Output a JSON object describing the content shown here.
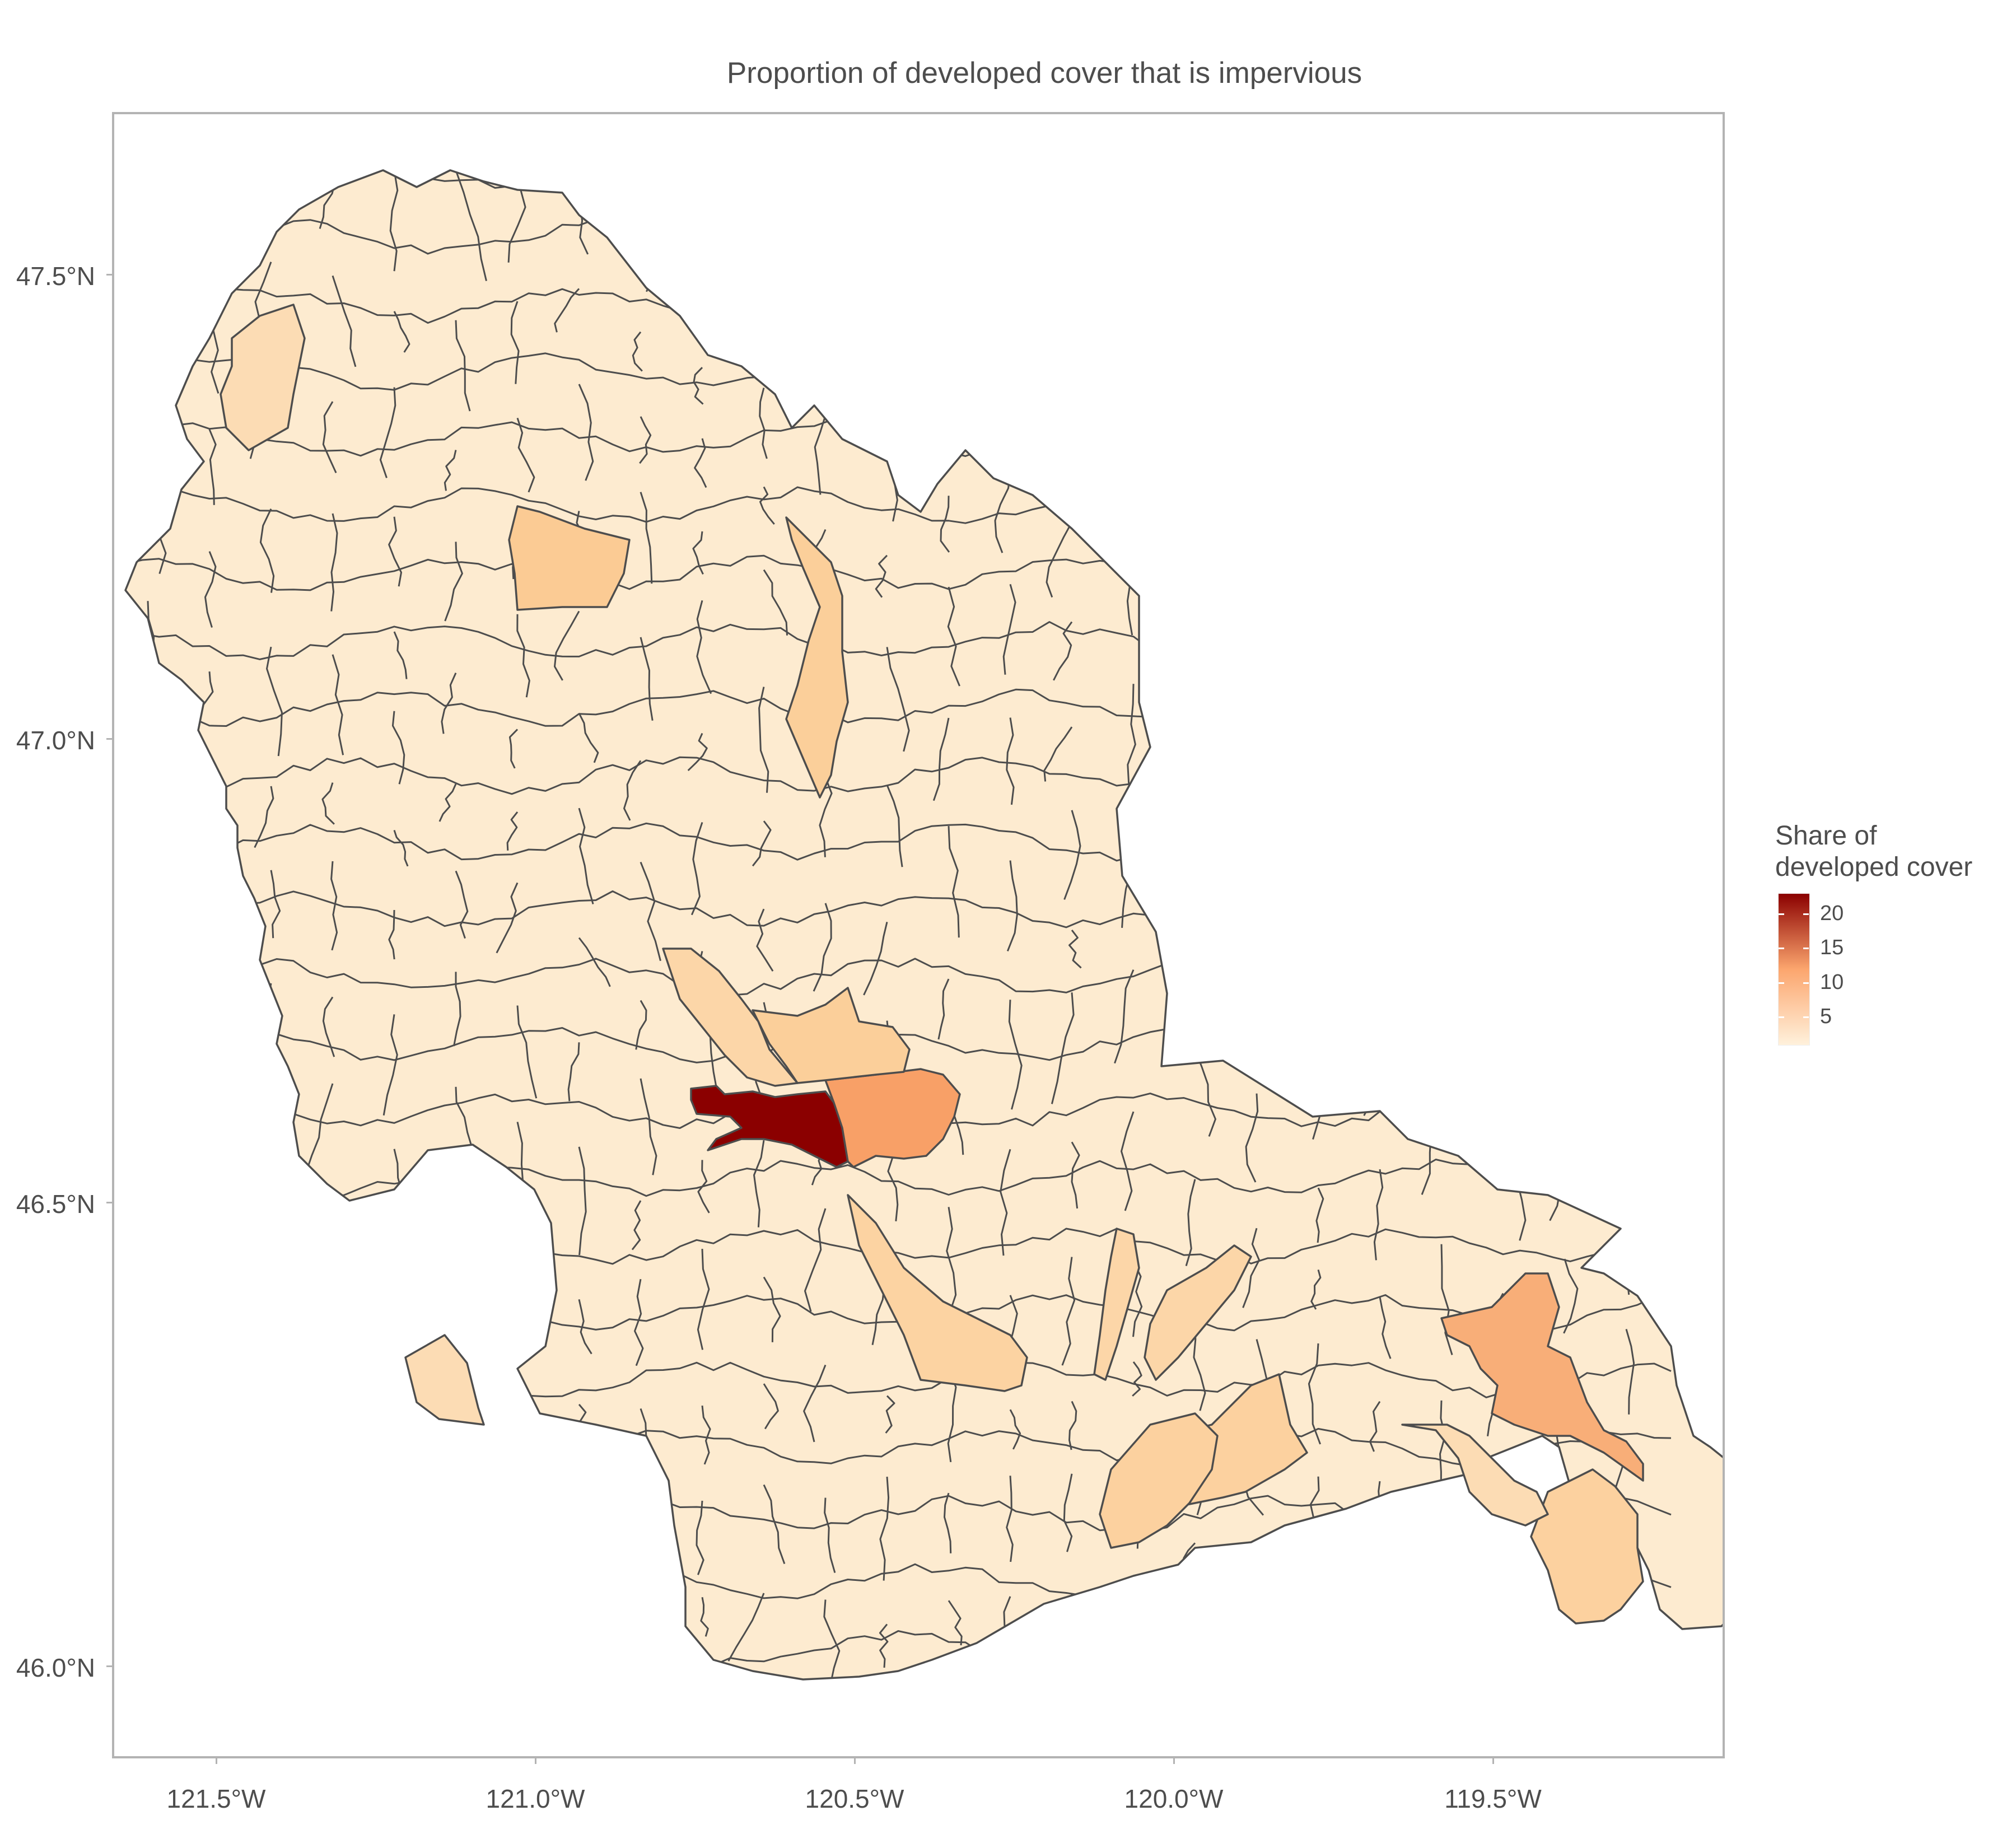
{
  "title": "Proportion of developed cover that is impervious",
  "legend": {
    "title_line1": "Share  of",
    "title_line2": "developed cover",
    "labels": [
      "20",
      "15",
      "10",
      "5"
    ],
    "values": [
      20,
      15,
      10,
      5
    ],
    "min": 1,
    "max": 23,
    "color_low": "#fff1dc",
    "color_mid": "#fca66e",
    "color_high": "#8b0000"
  },
  "axes": {
    "y_ticks": [
      "47.5°N",
      "47.0°N",
      "46.5°N",
      "46.0°N"
    ],
    "x_ticks": [
      "121.5°W",
      "121.0°W",
      "120.5°W",
      "120.0°W",
      "119.5°W"
    ]
  },
  "chart_data": {
    "type": "choropleth",
    "title": "Proportion of developed cover that is impervious",
    "legend_title": "Share  of developed cover",
    "xlim": [
      -121.63,
      -119.08
    ],
    "ylim": [
      45.9,
      47.68
    ],
    "colors": {
      "border": "#4d4d4d",
      "base_fill": "#fdebd0",
      "highlight_max": "#8b0000",
      "highlight_high": "#f9a06a"
    },
    "highlighted_regions": [
      {
        "value": 23,
        "lon": -120.62,
        "lat": 46.59
      },
      {
        "value": 13,
        "lon": -120.38,
        "lat": 46.59
      },
      {
        "value": 12,
        "lon": -119.39,
        "lat": 46.29
      },
      {
        "value": 8,
        "lon": -120.93,
        "lat": 47.2
      },
      {
        "value": 8,
        "lon": -120.49,
        "lat": 47.02
      },
      {
        "value": 8,
        "lon": -120.44,
        "lat": 46.68
      },
      {
        "value": 8,
        "lon": -120.34,
        "lat": 46.37
      },
      {
        "value": 8,
        "lon": -119.91,
        "lat": 46.2
      },
      {
        "value": 8,
        "lon": -119.79,
        "lat": 46.19
      },
      {
        "value": 8,
        "lon": -119.33,
        "lat": 46.13
      }
    ]
  }
}
